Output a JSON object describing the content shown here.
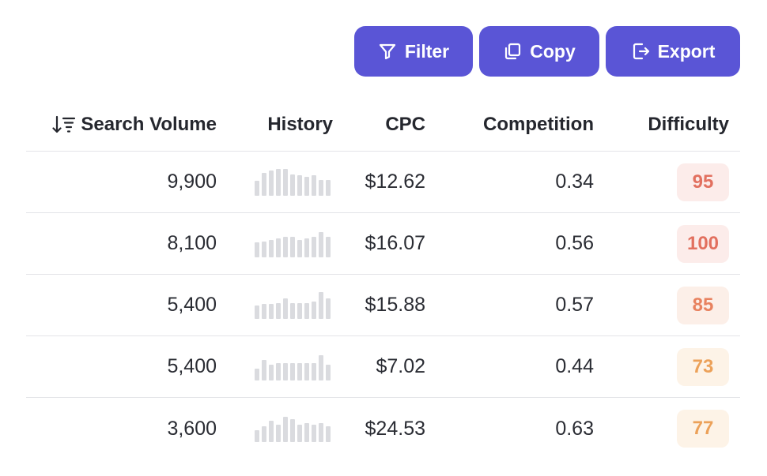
{
  "toolbar": {
    "filter_label": "Filter",
    "copy_label": "Copy",
    "export_label": "Export",
    "accent": "#5a55d6"
  },
  "table": {
    "headers": {
      "search_volume": "Search Volume",
      "history": "History",
      "cpc": "CPC",
      "competition": "Competition",
      "difficulty": "Difficulty"
    },
    "rows": [
      {
        "volume": "9,900",
        "history": [
          0.55,
          0.85,
          0.95,
          1.0,
          1.0,
          0.8,
          0.75,
          0.7,
          0.75,
          0.6,
          0.6
        ],
        "cpc": "$12.62",
        "competition": "0.34",
        "difficulty": "95",
        "diff_color": "#e2705f",
        "diff_bg": "#fcecea"
      },
      {
        "volume": "8,100",
        "history": [
          0.55,
          0.6,
          0.65,
          0.7,
          0.75,
          0.75,
          0.65,
          0.7,
          0.75,
          0.95,
          0.75
        ],
        "cpc": "$16.07",
        "competition": "0.56",
        "difficulty": "100",
        "diff_color": "#e2705f",
        "diff_bg": "#fcecea"
      },
      {
        "volume": "5,400",
        "history": [
          0.5,
          0.55,
          0.55,
          0.6,
          0.75,
          0.6,
          0.6,
          0.6,
          0.65,
          1.0,
          0.75
        ],
        "cpc": "$15.88",
        "competition": "0.57",
        "difficulty": "85",
        "diff_color": "#e8825f",
        "diff_bg": "#fcefe8"
      },
      {
        "volume": "5,400",
        "history": [
          0.45,
          0.75,
          0.6,
          0.65,
          0.65,
          0.65,
          0.65,
          0.65,
          0.65,
          0.95,
          0.6
        ],
        "cpc": "$7.02",
        "competition": "0.44",
        "difficulty": "73",
        "diff_color": "#eca159",
        "diff_bg": "#fdf3e7"
      },
      {
        "volume": "3,600",
        "history": [
          0.45,
          0.6,
          0.8,
          0.65,
          0.95,
          0.85,
          0.65,
          0.7,
          0.65,
          0.7,
          0.6
        ],
        "cpc": "$24.53",
        "competition": "0.63",
        "difficulty": "77",
        "diff_color": "#eca159",
        "diff_bg": "#fdf3e7"
      }
    ]
  }
}
